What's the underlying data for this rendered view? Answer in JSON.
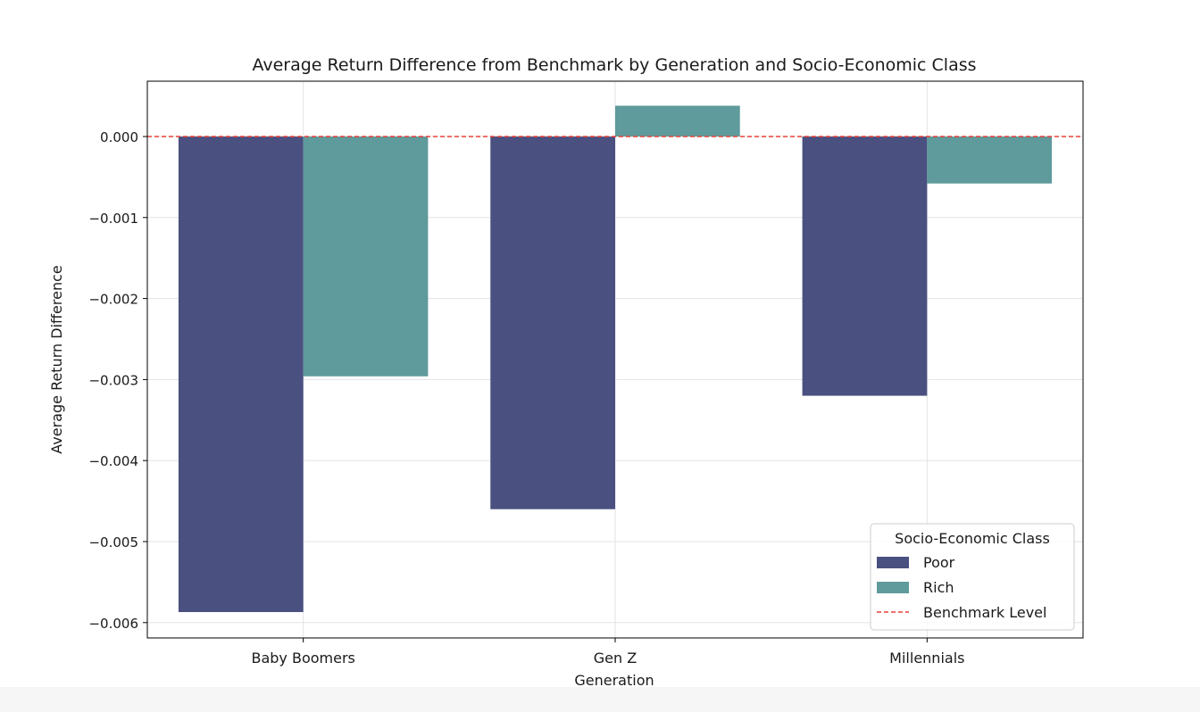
{
  "chart_data": {
    "type": "bar",
    "title": "Average Return Difference from Benchmark by Generation and Socio-Economic Class",
    "xlabel": "Generation",
    "ylabel": "Average Return Difference",
    "categories": [
      "Baby Boomers",
      "Gen Z",
      "Millennials"
    ],
    "series": [
      {
        "name": "Poor",
        "color": "#4a5080",
        "values": [
          -0.00587,
          -0.0046,
          -0.0032
        ]
      },
      {
        "name": "Rich",
        "color": "#5f9a9c",
        "values": [
          -0.00296,
          0.00038,
          -0.00058
        ]
      }
    ],
    "ylim": [
      -0.0062,
      0.0007
    ],
    "yticks": [
      0.0,
      -0.001,
      -0.002,
      -0.003,
      -0.004,
      -0.005,
      -0.006
    ],
    "ytick_labels": [
      "0.000",
      "−0.001",
      "−0.002",
      "−0.003",
      "−0.004",
      "−0.005",
      "−0.006"
    ],
    "benchmark": {
      "value": 0.0,
      "label": "Benchmark Level",
      "color": "#e8403a"
    },
    "grid": true,
    "legend": {
      "title": "Socio-Economic Class",
      "placement": "lower right"
    }
  }
}
